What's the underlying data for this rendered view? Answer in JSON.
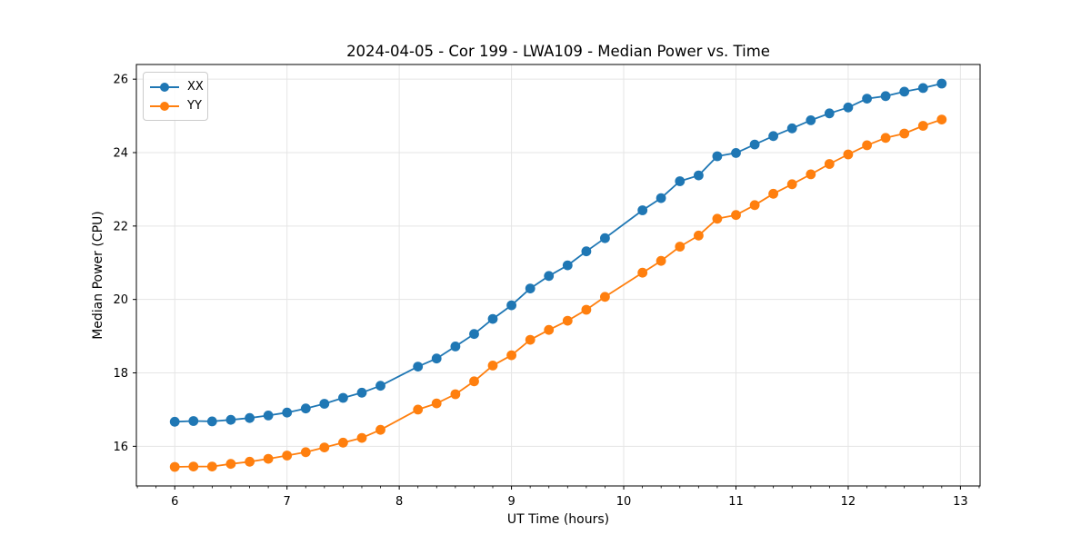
{
  "figure": {
    "background": "#ffffff",
    "grid_color": "#e5e5e5",
    "spine_color": "#000000",
    "text_color": "#000000"
  },
  "chart_data": {
    "type": "line",
    "title": "2024-04-05 - Cor 199 - LWA109 - Median Power vs. Time",
    "xlabel": "UT Time (hours)",
    "ylabel": "Median Power (CPU)",
    "xlim": [
      5.658,
      13.175
    ],
    "ylim": [
      14.92,
      26.4
    ],
    "x_ticks": [
      6,
      7,
      8,
      9,
      10,
      11,
      12,
      13
    ],
    "x_tick_labels": [
      "6",
      "7",
      "8",
      "9",
      "10",
      "11",
      "12",
      "13"
    ],
    "x_minor_divisions": 6,
    "y_ticks": [
      16,
      18,
      20,
      22,
      24,
      26
    ],
    "y_tick_labels": [
      "16",
      "18",
      "20",
      "22",
      "24",
      "26"
    ],
    "grid": true,
    "legend_position": "upper left",
    "series": [
      {
        "name": "XX",
        "color": "#1f77b4",
        "marker": "circle",
        "x": [
          6.0,
          6.167,
          6.333,
          6.5,
          6.667,
          6.833,
          7.0,
          7.167,
          7.333,
          7.5,
          7.667,
          7.833,
          8.167,
          8.333,
          8.5,
          8.667,
          8.833,
          9.0,
          9.167,
          9.333,
          9.5,
          9.667,
          9.833,
          10.167,
          10.333,
          10.5,
          10.667,
          10.833,
          11.0,
          11.167,
          11.333,
          11.5,
          11.667,
          11.833,
          12.0,
          12.167,
          12.333,
          12.5,
          12.667,
          12.833
        ],
        "y": [
          16.67,
          16.69,
          16.68,
          16.72,
          16.77,
          16.84,
          16.92,
          17.03,
          17.16,
          17.32,
          17.46,
          17.65,
          18.17,
          18.39,
          18.72,
          19.06,
          19.47,
          19.84,
          20.3,
          20.64,
          20.93,
          21.31,
          21.67,
          22.43,
          22.76,
          23.22,
          23.38,
          23.9,
          23.99,
          24.22,
          24.45,
          24.66,
          24.88,
          25.07,
          25.23,
          25.47,
          25.54,
          25.66,
          25.76,
          25.88
        ]
      },
      {
        "name": "YY",
        "color": "#ff7f0e",
        "marker": "circle",
        "x": [
          6.0,
          6.167,
          6.333,
          6.5,
          6.667,
          6.833,
          7.0,
          7.167,
          7.333,
          7.5,
          7.667,
          7.833,
          8.167,
          8.333,
          8.5,
          8.667,
          8.833,
          9.0,
          9.167,
          9.333,
          9.5,
          9.667,
          9.833,
          10.167,
          10.333,
          10.5,
          10.667,
          10.833,
          11.0,
          11.167,
          11.333,
          11.5,
          11.667,
          11.833,
          12.0,
          12.167,
          12.333,
          12.5,
          12.667,
          12.833
        ],
        "y": [
          15.44,
          15.45,
          15.45,
          15.52,
          15.58,
          15.66,
          15.75,
          15.84,
          15.97,
          16.1,
          16.23,
          16.45,
          17.0,
          17.17,
          17.42,
          17.77,
          18.2,
          18.48,
          18.9,
          19.17,
          19.42,
          19.72,
          20.07,
          20.73,
          21.05,
          21.44,
          21.74,
          22.2,
          22.3,
          22.57,
          22.88,
          23.14,
          23.41,
          23.69,
          23.95,
          24.2,
          24.4,
          24.52,
          24.73,
          24.9
        ]
      }
    ]
  }
}
